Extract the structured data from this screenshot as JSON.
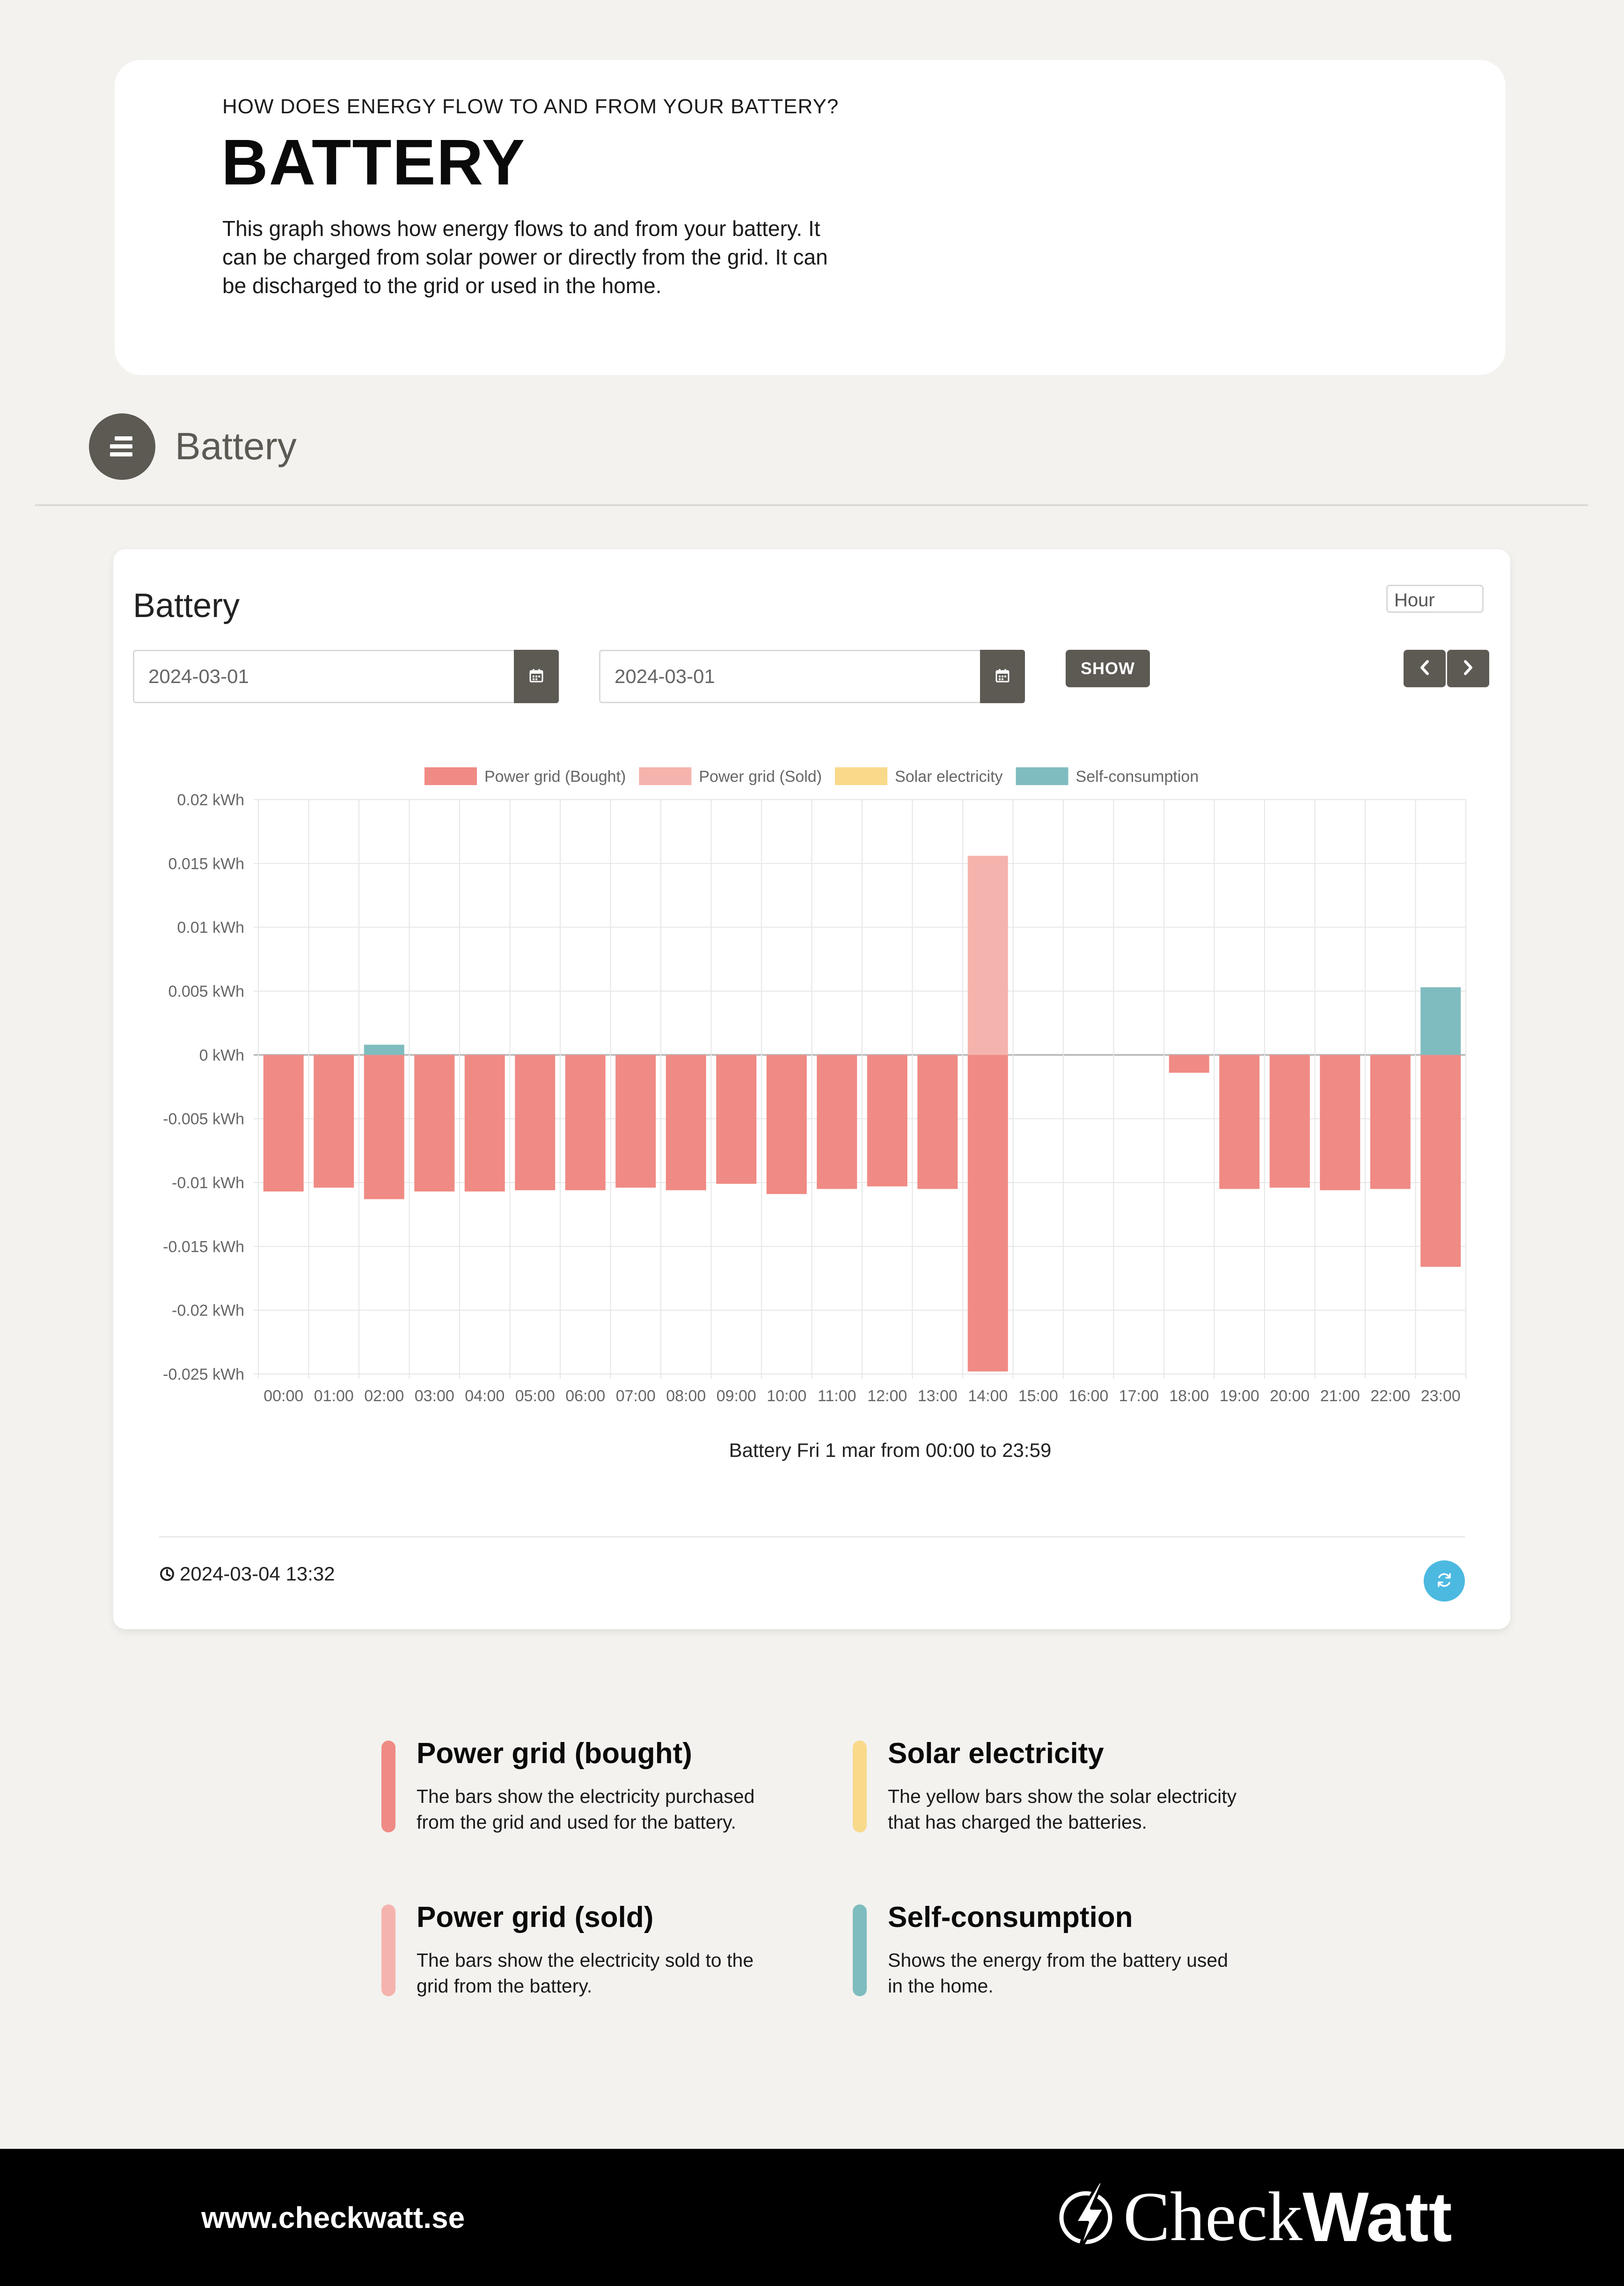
{
  "intro": {
    "eyebrow": "HOW DOES ENERGY FLOW TO AND FROM YOUR BATTERY?",
    "title": "BATTERY",
    "description": "This graph shows how energy flows to and from your battery. It can be charged from solar power or directly from the grid. It can be discharged to the grid or used in the home."
  },
  "section": {
    "title": "Battery",
    "icon": "stack-icon"
  },
  "panel": {
    "title": "Battery",
    "period": "Hour",
    "date_from": "2024-03-01",
    "date_to": "2024-03-01",
    "show_label": "SHOW",
    "updated": "2024-03-04 13:32",
    "icons": {
      "calendar": "calendar-icon",
      "prev": "chevron-left-icon",
      "next": "chevron-right-icon",
      "clock": "clock-icon",
      "refresh": "refresh-icon"
    }
  },
  "chart_data": {
    "type": "bar",
    "title": "Battery Fri 1 mar from 00:00 to 23:59",
    "ylim": [
      -0.025,
      0.02
    ],
    "y_ticks": [
      "0.02 kWh",
      "0.015 kWh",
      "0.01 kWh",
      "0.005 kWh",
      "0 kWh",
      "-0.005 kWh",
      "-0.01 kWh",
      "-0.015 kWh",
      "-0.02 kWh",
      "-0.025 kWh"
    ],
    "y_tick_values": [
      0.02,
      0.015,
      0.01,
      0.005,
      0,
      -0.005,
      -0.01,
      -0.015,
      -0.02,
      -0.025
    ],
    "grid": true,
    "legend_position": "top",
    "categories": [
      "00:00",
      "01:00",
      "02:00",
      "03:00",
      "04:00",
      "05:00",
      "06:00",
      "07:00",
      "08:00",
      "09:00",
      "10:00",
      "11:00",
      "12:00",
      "13:00",
      "14:00",
      "15:00",
      "16:00",
      "17:00",
      "18:00",
      "19:00",
      "20:00",
      "21:00",
      "22:00",
      "23:00"
    ],
    "series": [
      {
        "name": "Power grid (Bought)",
        "color": "#f08a84",
        "values": [
          -0.0107,
          -0.0104,
          -0.0113,
          -0.0107,
          -0.0107,
          -0.0106,
          -0.0106,
          -0.0104,
          -0.0106,
          -0.0101,
          -0.0109,
          -0.0105,
          -0.0103,
          -0.0105,
          -0.0248,
          0,
          0,
          0,
          -0.0014,
          -0.0105,
          -0.0104,
          -0.0106,
          -0.0105,
          -0.0166
        ]
      },
      {
        "name": "Power grid (Sold)",
        "color": "#f5b3ad",
        "values": [
          0,
          0,
          0,
          0,
          0,
          0,
          0,
          0,
          0,
          0,
          0,
          0,
          0,
          0,
          0.0156,
          0,
          0,
          0,
          0,
          0,
          0,
          0,
          0,
          0
        ]
      },
      {
        "name": "Solar electricity",
        "color": "#f9d98a",
        "values": [
          0,
          0,
          0,
          0,
          0,
          0,
          0,
          0,
          0,
          0,
          0,
          0,
          0,
          0,
          0,
          0,
          0,
          0,
          0,
          0,
          0,
          0,
          0,
          0
        ]
      },
      {
        "name": "Self-consumption",
        "color": "#7fbcbf",
        "values": [
          0,
          0,
          0.0008,
          0,
          0,
          0,
          0,
          0,
          0,
          0,
          0,
          0,
          0,
          0,
          0,
          0,
          0,
          0,
          0,
          0,
          0,
          0,
          0,
          0.0053
        ]
      }
    ]
  },
  "legend": [
    {
      "title": "Power grid (bought)",
      "description": "The bars show the electricity purchased from the grid and used for the battery.",
      "color": "#f08a84"
    },
    {
      "title": "Solar electricity",
      "description": "The yellow bars show the solar electricity that has charged the batteries.",
      "color": "#f9d98a"
    },
    {
      "title": "Power grid (sold)",
      "description": "The bars show the electricity sold to the grid from the battery.",
      "color": "#f5b3ad"
    },
    {
      "title": "Self-consumption",
      "description": "Shows the energy from the battery used in the home.",
      "color": "#7fbcbf"
    }
  ],
  "footer": {
    "url": "www.checkwatt.se",
    "logo_check": "Check",
    "logo_watt": "Watt",
    "logo_icon": "lightning-logo-icon"
  }
}
